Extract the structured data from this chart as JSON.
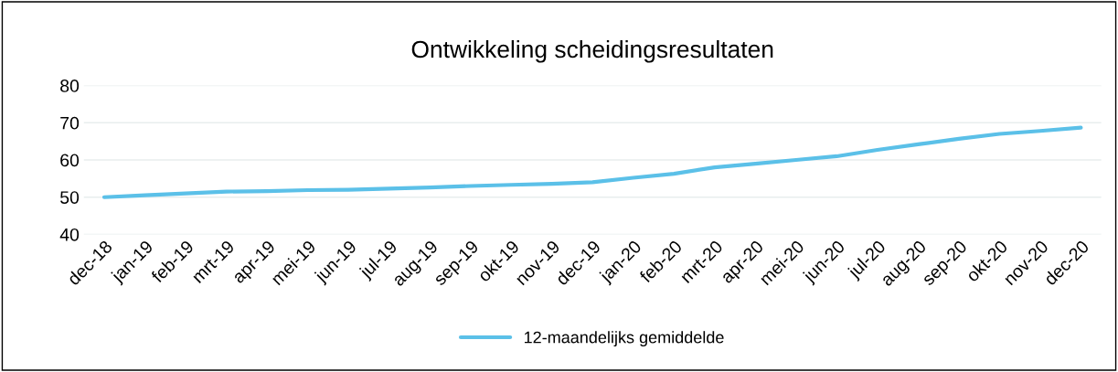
{
  "chart_data": {
    "type": "line",
    "title": "Ontwikkeling scheidingsresultaten",
    "categories": [
      "dec-18",
      "jan-19",
      "feb-19",
      "mrt-19",
      "apr-19",
      "mei-19",
      "jun-19",
      "jul-19",
      "aug-19",
      "sep-19",
      "okt-19",
      "nov-19",
      "dec-19",
      "jan-20",
      "feb-20",
      "mrt-20",
      "apr-20",
      "mei-20",
      "jun-20",
      "jul-20",
      "aug-20",
      "sep-20",
      "okt-20",
      "nov-20",
      "dec-20"
    ],
    "series": [
      {
        "name": "12-maandelijks gemiddelde",
        "color": "#5bc0e8",
        "values": [
          50,
          50.5,
          51,
          51.5,
          51.6,
          51.9,
          52,
          52.3,
          52.6,
          53,
          53.3,
          53.6,
          54,
          55.2,
          56.3,
          58,
          59,
          60,
          61,
          62.7,
          64.2,
          65.7,
          67,
          67.8,
          68.7
        ]
      }
    ],
    "ylim": [
      40,
      80
    ],
    "yticks": [
      40,
      50,
      60,
      70,
      80
    ],
    "grid": "y",
    "legend": "bottom",
    "marker": "none",
    "line_style": "solid"
  }
}
